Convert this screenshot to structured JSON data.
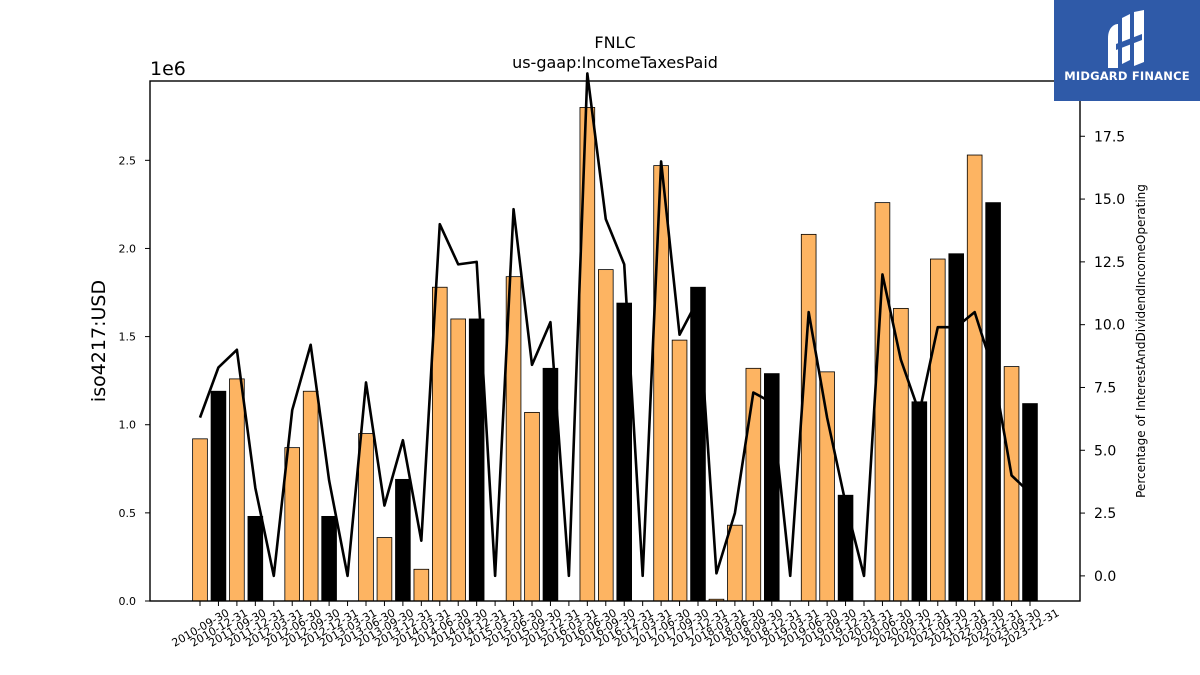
{
  "chart_data": {
    "type": "bar",
    "title": "FNLC",
    "subtitle": "us-gaap:IncomeTaxesPaid",
    "ylabel": "iso4217:USD",
    "y2label": "Percentage of InterestAndDividendIncomeOperating",
    "y_scale_label": "1e6",
    "ylim": [
      0,
      2.95
    ],
    "y2lim": [
      -1.0,
      19.7
    ],
    "y_ticks": [
      "0.0",
      "0.5",
      "1.0",
      "1.5",
      "2.0",
      "2.5"
    ],
    "y2_ticks": [
      "0.0",
      "2.5",
      "5.0",
      "7.5",
      "10.0",
      "12.5",
      "15.0",
      "17.5"
    ],
    "bar_colors": {
      "quarter": "#fdb462",
      "year_end": "#000000"
    },
    "line_color": "#000000",
    "categories": [
      "2010-09-30",
      "2010-12-31",
      "2011-09-30",
      "2011-12-31",
      "2012-03-31",
      "2012-06-30",
      "2012-09-30",
      "2012-12-31",
      "2013-03-31",
      "2013-06-30",
      "2013-09-30",
      "2013-12-31",
      "2014-03-31",
      "2014-06-30",
      "2014-09-30",
      "2014-12-31",
      "2015-03-31",
      "2015-06-30",
      "2015-09-30",
      "2015-12-31",
      "2016-03-31",
      "2016-06-30",
      "2016-09-30",
      "2016-12-31",
      "2017-03-31",
      "2017-06-30",
      "2017-09-30",
      "2017-12-31",
      "2018-03-31",
      "2018-06-30",
      "2018-09-30",
      "2018-12-31",
      "2019-03-31",
      "2019-06-30",
      "2019-09-30",
      "2019-12-31",
      "2020-03-31",
      "2020-06-30",
      "2020-09-30",
      "2020-12-31",
      "2021-09-30",
      "2021-12-31",
      "2022-09-30",
      "2022-12-31",
      "2023-09-30",
      "2023-12-31"
    ],
    "series": [
      {
        "kind": "bar",
        "values": [
          0.92,
          1.19,
          1.26,
          0.48,
          0,
          0.87,
          1.19,
          0.48,
          0,
          0.95,
          0.36,
          0.69,
          0.18,
          1.78,
          1.6,
          1.6,
          0,
          1.84,
          1.07,
          1.32,
          0,
          2.8,
          1.88,
          1.69,
          0,
          2.47,
          1.48,
          1.78,
          0.01,
          0.43,
          1.32,
          1.29,
          0,
          2.08,
          1.3,
          0.6,
          0,
          2.26,
          1.66,
          1.13,
          1.94,
          1.97,
          2.53,
          2.26,
          1.33,
          1.12
        ],
        "year_end": [
          false,
          true,
          false,
          true,
          false,
          false,
          false,
          true,
          false,
          false,
          false,
          true,
          false,
          false,
          false,
          true,
          false,
          false,
          false,
          true,
          false,
          false,
          false,
          true,
          false,
          false,
          false,
          true,
          false,
          false,
          false,
          true,
          false,
          false,
          false,
          true,
          false,
          false,
          false,
          true,
          false,
          true,
          false,
          true,
          false,
          true
        ]
      },
      {
        "kind": "line",
        "axis": "right",
        "values": [
          6.3,
          8.3,
          9.0,
          3.5,
          0,
          6.6,
          9.2,
          3.8,
          0,
          7.7,
          2.8,
          5.4,
          1.4,
          14.0,
          12.4,
          12.5,
          0,
          14.6,
          8.4,
          10.1,
          0,
          20.0,
          14.2,
          12.4,
          0,
          16.5,
          9.6,
          11.0,
          0.1,
          2.5,
          7.3,
          6.9,
          0,
          10.5,
          6.3,
          2.9,
          0,
          12.0,
          8.6,
          6.5,
          9.9,
          9.9,
          10.5,
          8.2,
          4.0,
          3.3
        ]
      }
    ]
  },
  "watermark": {
    "text": "MIDGARD FINANCE",
    "color": "#2f5aa8"
  }
}
